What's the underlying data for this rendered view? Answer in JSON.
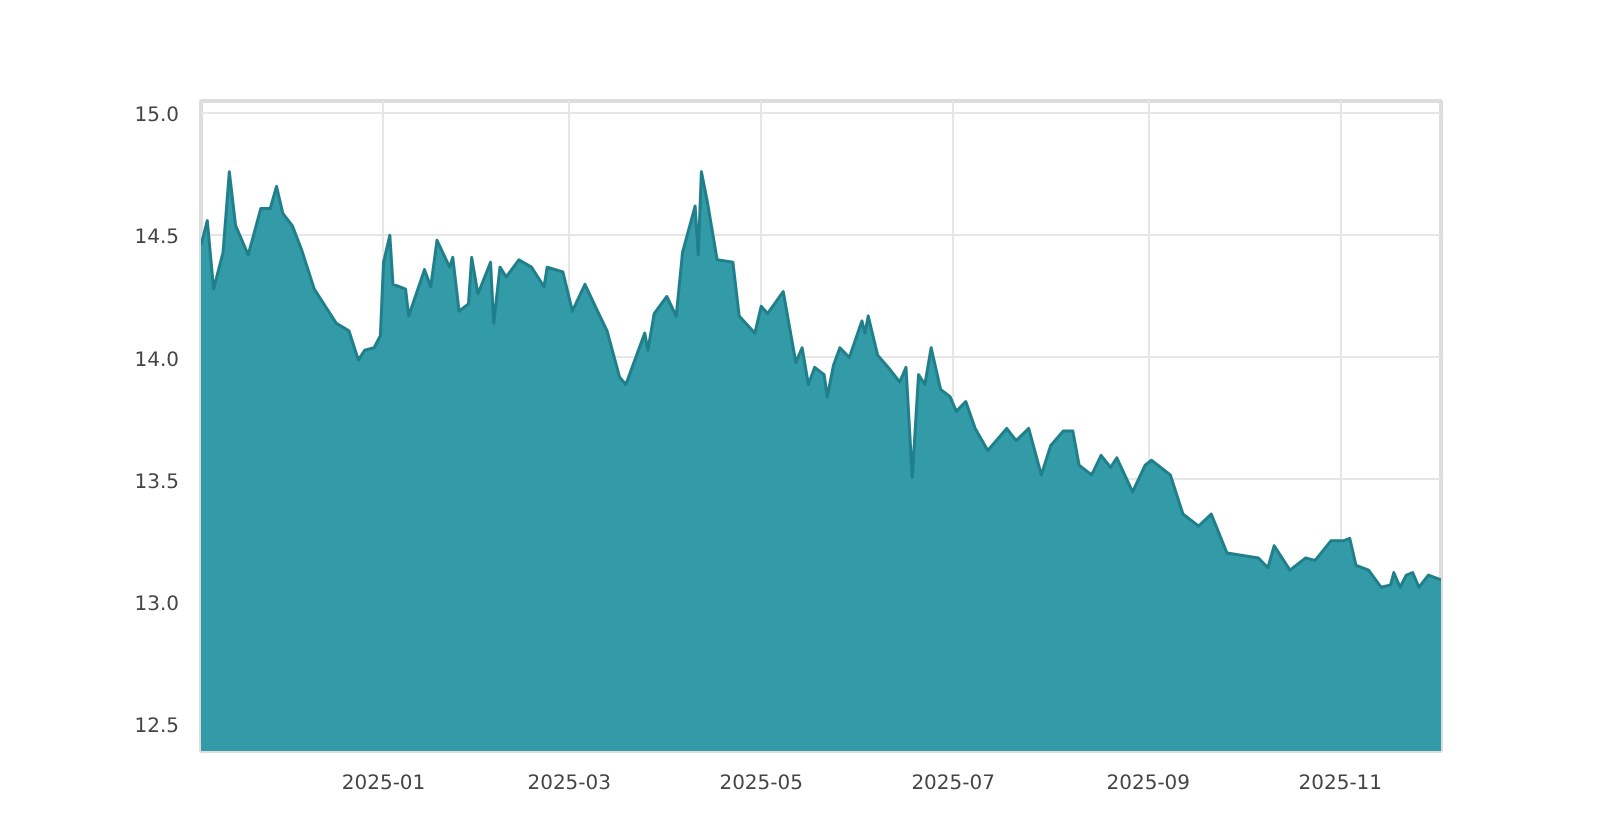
{
  "chart_data": {
    "type": "area",
    "x": [
      "2024-11-04",
      "2024-11-06",
      "2024-11-08",
      "2024-11-11",
      "2024-11-13",
      "2024-11-15",
      "2024-11-19",
      "2024-11-23",
      "2024-11-26",
      "2024-11-28",
      "2024-11-30",
      "2024-12-03",
      "2024-12-06",
      "2024-12-10",
      "2024-12-13",
      "2024-12-17",
      "2024-12-21",
      "2024-12-24",
      "2024-12-26",
      "2024-12-29",
      "2024-12-31",
      "2025-01-01",
      "2025-01-03",
      "2025-01-04",
      "2025-01-08",
      "2025-01-09",
      "2025-01-14",
      "2025-01-16",
      "2025-01-18",
      "2025-01-22",
      "2025-01-23",
      "2025-01-25",
      "2025-01-28",
      "2025-01-29",
      "2025-01-31",
      "2025-02-04",
      "2025-02-05",
      "2025-02-07",
      "2025-02-09",
      "2025-02-13",
      "2025-02-17",
      "2025-02-21",
      "2025-02-22",
      "2025-02-27",
      "2025-03-02",
      "2025-03-06",
      "2025-03-10",
      "2025-03-13",
      "2025-03-17",
      "2025-03-19",
      "2025-03-21",
      "2025-03-25",
      "2025-03-26",
      "2025-03-28",
      "2025-04-01",
      "2025-04-04",
      "2025-04-06",
      "2025-04-10",
      "2025-04-11",
      "2025-04-12",
      "2025-04-14",
      "2025-04-17",
      "2025-04-22",
      "2025-04-24",
      "2025-04-29",
      "2025-05-01",
      "2025-05-03",
      "2025-05-08",
      "2025-05-12",
      "2025-05-14",
      "2025-05-16",
      "2025-05-18",
      "2025-05-21",
      "2025-05-22",
      "2025-05-24",
      "2025-05-26",
      "2025-05-29",
      "2025-06-02",
      "2025-06-03",
      "2025-06-04",
      "2025-06-07",
      "2025-06-11",
      "2025-06-14",
      "2025-06-16",
      "2025-06-18",
      "2025-06-20",
      "2025-06-22",
      "2025-06-24",
      "2025-06-27",
      "2025-06-30",
      "2025-07-02",
      "2025-07-05",
      "2025-07-08",
      "2025-07-12",
      "2025-07-18",
      "2025-07-21",
      "2025-07-25",
      "2025-07-29",
      "2025-08-01",
      "2025-08-05",
      "2025-08-08",
      "2025-08-10",
      "2025-08-14",
      "2025-08-17",
      "2025-08-20",
      "2025-08-22",
      "2025-08-27",
      "2025-08-31",
      "2025-09-02",
      "2025-09-08",
      "2025-09-12",
      "2025-09-17",
      "2025-09-21",
      "2025-09-26",
      "2025-10-01",
      "2025-10-06",
      "2025-10-09",
      "2025-10-11",
      "2025-10-16",
      "2025-10-21",
      "2025-10-24",
      "2025-10-29",
      "2025-11-02",
      "2025-11-04",
      "2025-11-06",
      "2025-11-10",
      "2025-11-14",
      "2025-11-17",
      "2025-11-18",
      "2025-11-20",
      "2025-11-22",
      "2025-11-24",
      "2025-11-26",
      "2025-11-29",
      "2025-12-03"
    ],
    "series": [
      {
        "color": "#339ba8",
        "values": [
          14.46,
          14.56,
          14.28,
          14.43,
          14.76,
          14.54,
          14.42,
          14.61,
          14.61,
          14.7,
          14.59,
          14.54,
          14.44,
          14.28,
          14.22,
          14.14,
          14.11,
          13.99,
          14.03,
          14.04,
          14.09,
          14.39,
          14.5,
          14.3,
          14.28,
          14.17,
          14.36,
          14.29,
          14.48,
          14.37,
          14.41,
          14.19,
          14.22,
          14.41,
          14.26,
          14.39,
          14.14,
          14.37,
          14.33,
          14.4,
          14.37,
          14.29,
          14.37,
          14.35,
          14.19,
          14.3,
          14.19,
          14.11,
          13.92,
          13.89,
          13.96,
          14.1,
          14.03,
          14.18,
          14.25,
          14.17,
          14.43,
          14.62,
          14.42,
          14.76,
          14.63,
          14.4,
          14.39,
          14.17,
          14.1,
          14.21,
          14.18,
          14.27,
          13.98,
          14.04,
          13.89,
          13.96,
          13.93,
          13.84,
          13.97,
          14.04,
          14.0,
          14.15,
          14.1,
          14.17,
          14.01,
          13.95,
          13.9,
          13.96,
          13.51,
          13.93,
          13.89,
          14.04,
          13.87,
          13.84,
          13.78,
          13.82,
          13.71,
          13.62,
          13.71,
          13.66,
          13.71,
          13.52,
          13.64,
          13.7,
          13.7,
          13.56,
          13.52,
          13.6,
          13.55,
          13.59,
          13.45,
          13.56,
          13.58,
          13.52,
          13.36,
          13.31,
          13.36,
          13.2,
          13.19,
          13.18,
          13.14,
          13.23,
          13.13,
          13.18,
          13.17,
          13.25,
          13.25,
          13.26,
          13.15,
          13.13,
          13.06,
          13.07,
          13.12,
          13.06,
          13.11,
          13.12,
          13.06,
          13.11,
          13.09
        ]
      }
    ],
    "xlim": [
      "2024-11-04",
      "2025-12-03"
    ],
    "xticks": [
      "2025-01",
      "2025-03",
      "2025-05",
      "2025-07",
      "2025-09",
      "2025-11"
    ],
    "ylim": [
      12.39,
      15.05
    ],
    "yticks": [
      {
        "value": 12.5,
        "label": "12.5"
      },
      {
        "value": 13,
        "label": "13.0"
      },
      {
        "value": 13.5,
        "label": "13.5"
      },
      {
        "value": 14,
        "label": "14.0"
      },
      {
        "value": 14.5,
        "label": "14.5"
      },
      {
        "value": 15,
        "label": "15.0"
      }
    ],
    "grid": true
  }
}
